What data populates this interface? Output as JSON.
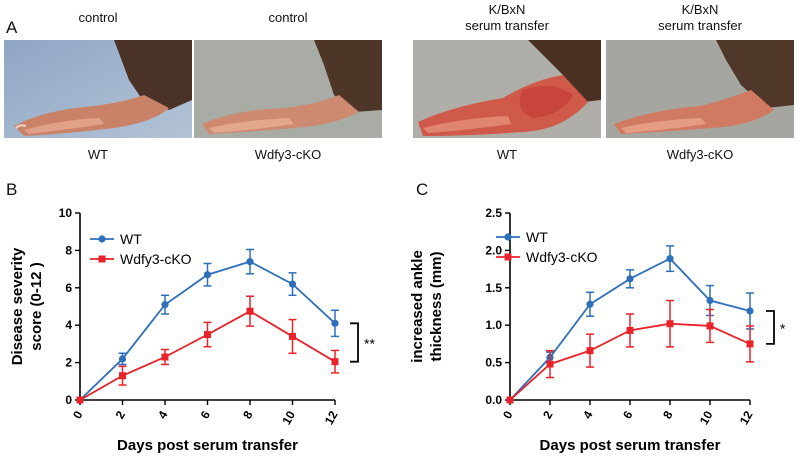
{
  "panel_a": {
    "letter": "A",
    "photos": [
      {
        "top_caption": [
          "control"
        ],
        "bottom_caption": "WT"
      },
      {
        "top_caption": [
          "control"
        ],
        "bottom_caption": "Wdfy3-cKO"
      },
      {
        "top_caption": [
          "K/BxN",
          "serum transfer"
        ],
        "bottom_caption": "WT"
      },
      {
        "top_caption": [
          "K/BxN",
          "serum transfer"
        ],
        "bottom_caption": "Wdfy3-cKO"
      }
    ]
  },
  "chart_data": [
    {
      "letter": "B",
      "type": "line",
      "xlabel": "Days post serum transfer",
      "ylabel": "Disease severity score (0-12 )",
      "ylabel_lines": [
        "Disease severity",
        "score (0-12 )"
      ],
      "x": [
        0,
        2,
        4,
        6,
        8,
        10,
        12
      ],
      "xlim": [
        0,
        12
      ],
      "ylim": [
        0,
        10
      ],
      "yticks": [
        0,
        2,
        4,
        6,
        8,
        10
      ],
      "ytick_labels": [
        "0",
        "2",
        "4",
        "6",
        "8",
        "10"
      ],
      "legend": "top-left",
      "significance": "**",
      "series": [
        {
          "name": "WT",
          "color": "#2e6fba",
          "marker": "circle",
          "values": [
            0,
            2.2,
            5.1,
            6.7,
            7.4,
            6.2,
            4.1
          ],
          "errors": [
            0,
            0.3,
            0.5,
            0.6,
            0.65,
            0.6,
            0.7
          ]
        },
        {
          "name": "Wdfy3-cKO",
          "color": "#e8232a",
          "marker": "square",
          "values": [
            0,
            1.3,
            2.3,
            3.5,
            4.75,
            3.4,
            2.05
          ],
          "errors": [
            0,
            0.5,
            0.4,
            0.65,
            0.8,
            0.9,
            0.6
          ]
        }
      ]
    },
    {
      "letter": "C",
      "type": "line",
      "xlabel": "Days post serum transfer",
      "ylabel": "increased ankle thickness (mm)",
      "ylabel_lines": [
        "increased ankle",
        "thickness (mm)"
      ],
      "x": [
        0,
        2,
        4,
        6,
        8,
        10,
        12
      ],
      "xlim": [
        0,
        12
      ],
      "ylim": [
        0,
        2.5
      ],
      "yticks": [
        0,
        0.5,
        1,
        1.5,
        2,
        2.5
      ],
      "ytick_labels": [
        "0.0",
        "0.5",
        "1.0",
        "1.5",
        "2.0",
        "2.5"
      ],
      "legend": "top-left",
      "significance": "*",
      "series": [
        {
          "name": "WT",
          "color": "#2e6fba",
          "marker": "circle",
          "values": [
            0,
            0.57,
            1.28,
            1.62,
            1.89,
            1.33,
            1.19
          ],
          "errors": [
            0,
            0.07,
            0.16,
            0.12,
            0.17,
            0.2,
            0.24
          ]
        },
        {
          "name": "Wdfy3-cKO",
          "color": "#e8232a",
          "marker": "square",
          "values": [
            0,
            0.48,
            0.66,
            0.93,
            1.02,
            0.99,
            0.75
          ],
          "errors": [
            0,
            0.18,
            0.22,
            0.22,
            0.31,
            0.22,
            0.24
          ]
        }
      ]
    }
  ]
}
